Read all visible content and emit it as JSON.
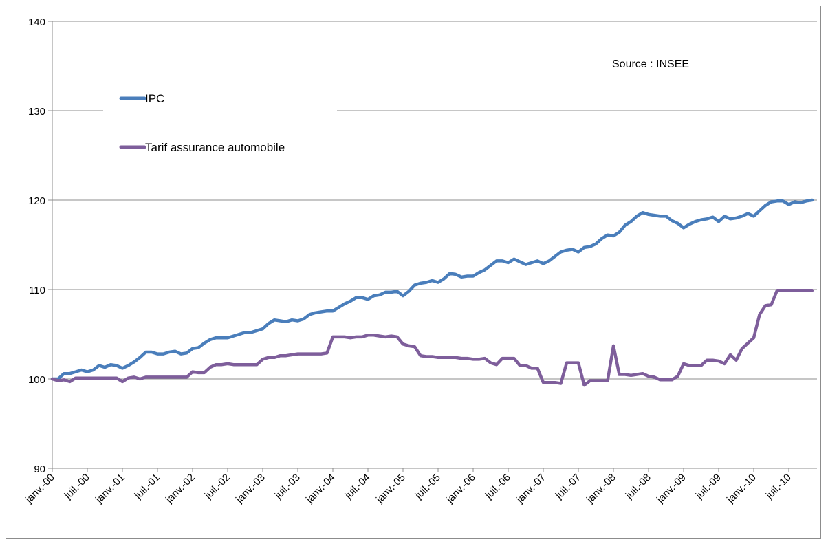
{
  "chart_data": {
    "type": "line",
    "ylim": [
      90,
      140
    ],
    "yticks": [
      "90",
      "100",
      "110",
      "120",
      "130",
      "140"
    ],
    "grid": true,
    "legend_position": "top-left",
    "annotation": "Source : INSEE",
    "xtick_labels": [
      "janv.-00",
      "juil.-00",
      "janv.-01",
      "juil.-01",
      "janv.-02",
      "juil.-02",
      "janv.-03",
      "juil.-03",
      "janv.-04",
      "juil.-04",
      "janv.-05",
      "juil.-05",
      "janv.-06",
      "juil.-06",
      "janv.-07",
      "juil.-07",
      "janv.-08",
      "juil.-08",
      "janv.-09",
      "juil.-09",
      "janv.-10",
      "juil.-10"
    ],
    "series": [
      {
        "name": "IPC",
        "color": "#4a7ebb",
        "points": [
          [
            "2000-01",
            100.0
          ],
          [
            "2000-02",
            100.0
          ],
          [
            "2000-03",
            100.6
          ],
          [
            "2000-04",
            100.6
          ],
          [
            "2000-05",
            100.8
          ],
          [
            "2000-06",
            101.0
          ],
          [
            "2000-07",
            100.8
          ],
          [
            "2000-08",
            101.0
          ],
          [
            "2000-09",
            101.5
          ],
          [
            "2000-10",
            101.3
          ],
          [
            "2000-11",
            101.6
          ],
          [
            "2000-12",
            101.5
          ],
          [
            "2001-01",
            101.2
          ],
          [
            "2001-02",
            101.5
          ],
          [
            "2001-03",
            101.9
          ],
          [
            "2001-04",
            102.4
          ],
          [
            "2001-05",
            103.0
          ],
          [
            "2001-06",
            103.0
          ],
          [
            "2001-07",
            102.8
          ],
          [
            "2001-08",
            102.8
          ],
          [
            "2001-09",
            103.0
          ],
          [
            "2001-10",
            103.1
          ],
          [
            "2001-11",
            102.8
          ],
          [
            "2001-12",
            102.9
          ],
          [
            "2002-01",
            103.4
          ],
          [
            "2002-02",
            103.5
          ],
          [
            "2002-03",
            104.0
          ],
          [
            "2002-04",
            104.4
          ],
          [
            "2002-05",
            104.6
          ],
          [
            "2002-06",
            104.6
          ],
          [
            "2002-07",
            104.6
          ],
          [
            "2002-08",
            104.8
          ],
          [
            "2002-09",
            105.0
          ],
          [
            "2002-10",
            105.2
          ],
          [
            "2002-11",
            105.2
          ],
          [
            "2002-12",
            105.4
          ],
          [
            "2003-01",
            105.6
          ],
          [
            "2003-02",
            106.2
          ],
          [
            "2003-03",
            106.6
          ],
          [
            "2003-04",
            106.5
          ],
          [
            "2003-05",
            106.4
          ],
          [
            "2003-06",
            106.6
          ],
          [
            "2003-07",
            106.5
          ],
          [
            "2003-08",
            106.7
          ],
          [
            "2003-09",
            107.2
          ],
          [
            "2003-10",
            107.4
          ],
          [
            "2003-11",
            107.5
          ],
          [
            "2003-12",
            107.6
          ],
          [
            "2004-01",
            107.6
          ],
          [
            "2004-02",
            108.0
          ],
          [
            "2004-03",
            108.4
          ],
          [
            "2004-04",
            108.7
          ],
          [
            "2004-05",
            109.1
          ],
          [
            "2004-06",
            109.1
          ],
          [
            "2004-07",
            108.9
          ],
          [
            "2004-08",
            109.3
          ],
          [
            "2004-09",
            109.4
          ],
          [
            "2004-10",
            109.7
          ],
          [
            "2004-11",
            109.7
          ],
          [
            "2004-12",
            109.8
          ],
          [
            "2005-01",
            109.3
          ],
          [
            "2005-02",
            109.8
          ],
          [
            "2005-03",
            110.5
          ],
          [
            "2005-04",
            110.7
          ],
          [
            "2005-05",
            110.8
          ],
          [
            "2005-06",
            111.0
          ],
          [
            "2005-07",
            110.8
          ],
          [
            "2005-08",
            111.2
          ],
          [
            "2005-09",
            111.8
          ],
          [
            "2005-10",
            111.7
          ],
          [
            "2005-11",
            111.4
          ],
          [
            "2005-12",
            111.5
          ],
          [
            "2006-01",
            111.5
          ],
          [
            "2006-02",
            111.9
          ],
          [
            "2006-03",
            112.2
          ],
          [
            "2006-04",
            112.7
          ],
          [
            "2006-05",
            113.2
          ],
          [
            "2006-06",
            113.2
          ],
          [
            "2006-07",
            113.0
          ],
          [
            "2006-08",
            113.4
          ],
          [
            "2006-09",
            113.1
          ],
          [
            "2006-10",
            112.8
          ],
          [
            "2006-11",
            113.0
          ],
          [
            "2006-12",
            113.2
          ],
          [
            "2007-01",
            112.9
          ],
          [
            "2007-02",
            113.2
          ],
          [
            "2007-03",
            113.7
          ],
          [
            "2007-04",
            114.2
          ],
          [
            "2007-05",
            114.4
          ],
          [
            "2007-06",
            114.5
          ],
          [
            "2007-07",
            114.2
          ],
          [
            "2007-08",
            114.7
          ],
          [
            "2007-09",
            114.8
          ],
          [
            "2007-10",
            115.1
          ],
          [
            "2007-11",
            115.7
          ],
          [
            "2007-12",
            116.1
          ],
          [
            "2008-01",
            116.0
          ],
          [
            "2008-02",
            116.4
          ],
          [
            "2008-03",
            117.2
          ],
          [
            "2008-04",
            117.6
          ],
          [
            "2008-05",
            118.2
          ],
          [
            "2008-06",
            118.6
          ],
          [
            "2008-07",
            118.4
          ],
          [
            "2008-08",
            118.3
          ],
          [
            "2008-09",
            118.2
          ],
          [
            "2008-10",
            118.2
          ],
          [
            "2008-11",
            117.7
          ],
          [
            "2008-12",
            117.4
          ],
          [
            "2009-01",
            116.9
          ],
          [
            "2009-02",
            117.3
          ],
          [
            "2009-03",
            117.6
          ],
          [
            "2009-04",
            117.8
          ],
          [
            "2009-05",
            117.9
          ],
          [
            "2009-06",
            118.1
          ],
          [
            "2009-07",
            117.6
          ],
          [
            "2009-08",
            118.2
          ],
          [
            "2009-09",
            117.9
          ],
          [
            "2009-10",
            118.0
          ],
          [
            "2009-11",
            118.2
          ],
          [
            "2009-12",
            118.5
          ],
          [
            "2010-01",
            118.2
          ],
          [
            "2010-02",
            118.8
          ],
          [
            "2010-03",
            119.4
          ],
          [
            "2010-04",
            119.8
          ],
          [
            "2010-05",
            119.9
          ],
          [
            "2010-06",
            119.9
          ],
          [
            "2010-07",
            119.5
          ],
          [
            "2010-08",
            119.8
          ],
          [
            "2010-09",
            119.7
          ],
          [
            "2010-10",
            119.9
          ],
          [
            "2010-11",
            120.0
          ]
        ]
      },
      {
        "name": "Tarif assurance automobile",
        "color": "#7e5e9b",
        "points": [
          [
            "2000-01",
            100.0
          ],
          [
            "2000-02",
            99.8
          ],
          [
            "2000-03",
            99.9
          ],
          [
            "2000-04",
            99.7
          ],
          [
            "2000-05",
            100.1
          ],
          [
            "2000-06",
            100.1
          ],
          [
            "2000-07",
            100.1
          ],
          [
            "2000-08",
            100.1
          ],
          [
            "2000-09",
            100.1
          ],
          [
            "2000-10",
            100.1
          ],
          [
            "2000-11",
            100.1
          ],
          [
            "2000-12",
            100.1
          ],
          [
            "2001-01",
            99.7
          ],
          [
            "2001-02",
            100.1
          ],
          [
            "2001-03",
            100.2
          ],
          [
            "2001-04",
            100.0
          ],
          [
            "2001-05",
            100.2
          ],
          [
            "2001-06",
            100.2
          ],
          [
            "2001-07",
            100.2
          ],
          [
            "2001-08",
            100.2
          ],
          [
            "2001-09",
            100.2
          ],
          [
            "2001-10",
            100.2
          ],
          [
            "2001-11",
            100.2
          ],
          [
            "2001-12",
            100.2
          ],
          [
            "2002-01",
            100.8
          ],
          [
            "2002-02",
            100.7
          ],
          [
            "2002-03",
            100.7
          ],
          [
            "2002-04",
            101.3
          ],
          [
            "2002-05",
            101.6
          ],
          [
            "2002-06",
            101.6
          ],
          [
            "2002-07",
            101.7
          ],
          [
            "2002-08",
            101.6
          ],
          [
            "2002-09",
            101.6
          ],
          [
            "2002-10",
            101.6
          ],
          [
            "2002-11",
            101.6
          ],
          [
            "2002-12",
            101.6
          ],
          [
            "2003-01",
            102.2
          ],
          [
            "2003-02",
            102.4
          ],
          [
            "2003-03",
            102.4
          ],
          [
            "2003-04",
            102.6
          ],
          [
            "2003-05",
            102.6
          ],
          [
            "2003-06",
            102.7
          ],
          [
            "2003-07",
            102.8
          ],
          [
            "2003-08",
            102.8
          ],
          [
            "2003-09",
            102.8
          ],
          [
            "2003-10",
            102.8
          ],
          [
            "2003-11",
            102.8
          ],
          [
            "2003-12",
            102.9
          ],
          [
            "2004-01",
            104.7
          ],
          [
            "2004-02",
            104.7
          ],
          [
            "2004-03",
            104.7
          ],
          [
            "2004-04",
            104.6
          ],
          [
            "2004-05",
            104.7
          ],
          [
            "2004-06",
            104.7
          ],
          [
            "2004-07",
            104.9
          ],
          [
            "2004-08",
            104.9
          ],
          [
            "2004-09",
            104.8
          ],
          [
            "2004-10",
            104.7
          ],
          [
            "2004-11",
            104.8
          ],
          [
            "2004-12",
            104.7
          ],
          [
            "2005-01",
            103.9
          ],
          [
            "2005-02",
            103.7
          ],
          [
            "2005-03",
            103.6
          ],
          [
            "2005-04",
            102.6
          ],
          [
            "2005-05",
            102.5
          ],
          [
            "2005-06",
            102.5
          ],
          [
            "2005-07",
            102.4
          ],
          [
            "2005-08",
            102.4
          ],
          [
            "2005-09",
            102.4
          ],
          [
            "2005-10",
            102.4
          ],
          [
            "2005-11",
            102.3
          ],
          [
            "2005-12",
            102.3
          ],
          [
            "2006-01",
            102.2
          ],
          [
            "2006-02",
            102.2
          ],
          [
            "2006-03",
            102.3
          ],
          [
            "2006-04",
            101.8
          ],
          [
            "2006-05",
            101.6
          ],
          [
            "2006-06",
            102.3
          ],
          [
            "2006-07",
            102.3
          ],
          [
            "2006-08",
            102.3
          ],
          [
            "2006-09",
            101.5
          ],
          [
            "2006-10",
            101.5
          ],
          [
            "2006-11",
            101.2
          ],
          [
            "2006-12",
            101.2
          ],
          [
            "2007-01",
            99.6
          ],
          [
            "2007-02",
            99.6
          ],
          [
            "2007-03",
            99.6
          ],
          [
            "2007-04",
            99.5
          ],
          [
            "2007-05",
            101.8
          ],
          [
            "2007-06",
            101.8
          ],
          [
            "2007-07",
            101.8
          ],
          [
            "2007-08",
            99.3
          ],
          [
            "2007-09",
            99.8
          ],
          [
            "2007-10",
            99.8
          ],
          [
            "2007-11",
            99.8
          ],
          [
            "2007-12",
            99.8
          ],
          [
            "2008-01",
            103.7
          ],
          [
            "2008-02",
            100.5
          ],
          [
            "2008-03",
            100.5
          ],
          [
            "2008-04",
            100.4
          ],
          [
            "2008-05",
            100.5
          ],
          [
            "2008-06",
            100.6
          ],
          [
            "2008-07",
            100.3
          ],
          [
            "2008-08",
            100.2
          ],
          [
            "2008-09",
            99.9
          ],
          [
            "2008-10",
            99.9
          ],
          [
            "2008-11",
            99.9
          ],
          [
            "2008-12",
            100.3
          ],
          [
            "2009-01",
            101.7
          ],
          [
            "2009-02",
            101.5
          ],
          [
            "2009-03",
            101.5
          ],
          [
            "2009-04",
            101.5
          ],
          [
            "2009-05",
            102.1
          ],
          [
            "2009-06",
            102.1
          ],
          [
            "2009-07",
            102.0
          ],
          [
            "2009-08",
            101.7
          ],
          [
            "2009-09",
            102.7
          ],
          [
            "2009-10",
            102.1
          ],
          [
            "2009-11",
            103.4
          ],
          [
            "2009-12",
            104.0
          ],
          [
            "2010-01",
            104.6
          ],
          [
            "2010-02",
            107.2
          ],
          [
            "2010-03",
            108.2
          ],
          [
            "2010-04",
            108.3
          ],
          [
            "2010-05",
            109.9
          ],
          [
            "2010-06",
            109.9
          ],
          [
            "2010-07",
            109.9
          ],
          [
            "2010-08",
            109.9
          ],
          [
            "2010-09",
            109.9
          ],
          [
            "2010-10",
            109.9
          ],
          [
            "2010-11",
            109.9
          ]
        ]
      }
    ]
  }
}
